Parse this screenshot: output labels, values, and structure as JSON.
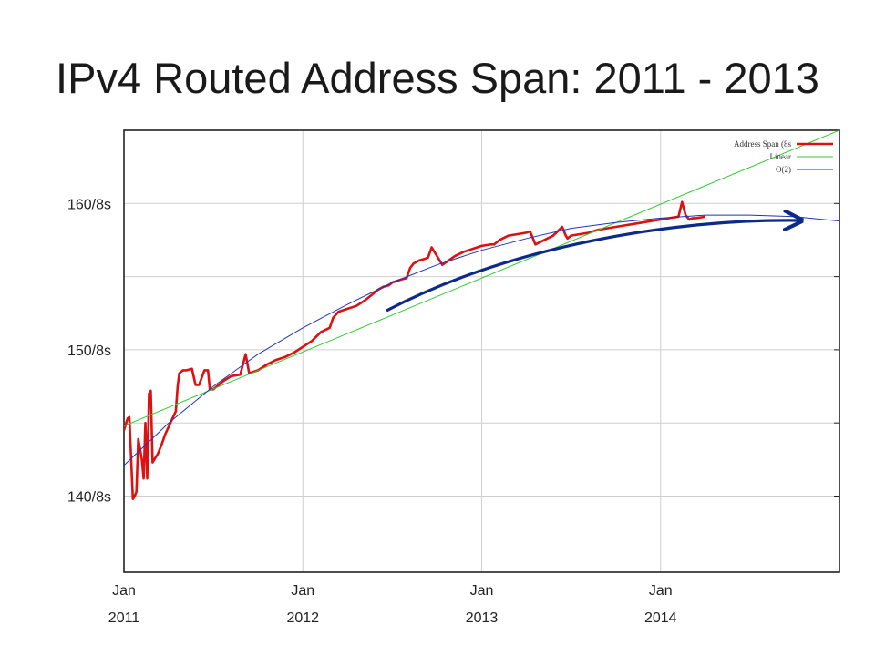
{
  "title": "IPv4 Routed Address Span: 2011 - 2013",
  "chart_data": {
    "type": "line",
    "title": "IPv4 Routed Address Span: 2011 - 2013",
    "xlabel": "",
    "ylabel": "",
    "x_unit": "year",
    "xlim": [
      2011.0,
      2015.0
    ],
    "ylim": [
      134.8,
      165.0
    ],
    "grid": true,
    "legend_position": "top-right",
    "y_ticks": [
      {
        "value": 140,
        "label": "140/8s"
      },
      {
        "value": 150,
        "label": "150/8s"
      },
      {
        "value": 160,
        "label": "160/8s"
      }
    ],
    "x_ticks": [
      {
        "value": 2011,
        "label1": "Jan",
        "label2": "2011"
      },
      {
        "value": 2012,
        "label1": "Jan",
        "label2": "2012"
      },
      {
        "value": 2013,
        "label1": "Jan",
        "label2": "2013"
      },
      {
        "value": 2014,
        "label1": "Jan",
        "label2": "2014"
      }
    ],
    "series": [
      {
        "name": "Address Span (8s",
        "color": "#dd1111",
        "x": [
          2011.0,
          2011.02,
          2011.03,
          2011.05,
          2011.06,
          2011.07,
          2011.08,
          2011.09,
          2011.1,
          2011.11,
          2011.12,
          2011.13,
          2011.14,
          2011.15,
          2011.16,
          2011.17,
          2011.18,
          2011.19,
          2011.21,
          2011.23,
          2011.26,
          2011.29,
          2011.3,
          2011.31,
          2011.33,
          2011.35,
          2011.38,
          2011.4,
          2011.42,
          2011.45,
          2011.47,
          2011.48,
          2011.5,
          2011.53,
          2011.56,
          2011.6,
          2011.65,
          2011.68,
          2011.7,
          2011.75,
          2011.8,
          2011.85,
          2011.9,
          2011.95,
          2012.0,
          2012.05,
          2012.1,
          2012.15,
          2012.17,
          2012.2,
          2012.25,
          2012.3,
          2012.35,
          2012.38,
          2012.42,
          2012.45,
          2012.48,
          2012.5,
          2012.55,
          2012.58,
          2012.6,
          2012.62,
          2012.65,
          2012.68,
          2012.7,
          2012.72,
          2012.78,
          2012.85,
          2012.9,
          2012.95,
          2013.0,
          2013.05,
          2013.07,
          2013.1,
          2013.15,
          2013.2,
          2013.25,
          2013.27,
          2013.3,
          2013.35,
          2013.4,
          2013.45,
          2013.47,
          2013.48,
          2013.5,
          2013.55,
          2013.6,
          2013.65,
          2013.7,
          2013.75,
          2013.8,
          2013.85,
          2013.9,
          2013.95,
          2014.0,
          2014.05,
          2014.1,
          2014.12,
          2014.14,
          2014.16,
          2014.18,
          2014.2,
          2014.25
        ],
        "values": [
          144.5,
          145.3,
          145.4,
          139.8,
          140.0,
          140.3,
          143.9,
          143.2,
          142.5,
          141.2,
          145.0,
          141.2,
          147.0,
          147.2,
          142.3,
          142.5,
          142.7,
          142.9,
          143.5,
          144.2,
          145.0,
          145.8,
          147.5,
          148.4,
          148.6,
          148.6,
          148.7,
          147.6,
          147.6,
          148.6,
          148.6,
          147.3,
          147.3,
          147.6,
          147.9,
          148.2,
          148.3,
          149.7,
          148.4,
          148.6,
          149.0,
          149.3,
          149.5,
          149.8,
          150.2,
          150.6,
          151.2,
          151.5,
          152.2,
          152.6,
          152.8,
          153.0,
          153.4,
          153.7,
          154.1,
          154.3,
          154.4,
          154.6,
          154.8,
          154.9,
          155.6,
          155.9,
          156.1,
          156.2,
          156.3,
          157.0,
          155.8,
          156.4,
          156.7,
          156.9,
          157.1,
          157.2,
          157.2,
          157.5,
          157.8,
          157.9,
          158.0,
          158.1,
          157.2,
          157.5,
          157.8,
          158.4,
          157.8,
          157.6,
          157.8,
          157.9,
          158.0,
          158.2,
          158.3,
          158.4,
          158.5,
          158.6,
          158.7,
          158.8,
          158.9,
          159.0,
          159.1,
          160.1,
          159.2,
          158.9,
          159.0,
          159.0,
          159.1
        ]
      },
      {
        "name": "Linear",
        "color": "#33cc33",
        "x": [
          2011.0,
          2015.0
        ],
        "values": [
          144.8,
          165.0
        ]
      },
      {
        "name": "O(2)",
        "color": "#2233bb",
        "x": [
          2011.0,
          2011.25,
          2011.5,
          2011.75,
          2012.0,
          2012.25,
          2012.5,
          2012.75,
          2013.0,
          2013.25,
          2013.5,
          2013.75,
          2014.0,
          2014.25,
          2014.5,
          2014.75,
          2015.0
        ],
        "values": [
          142.1,
          145.0,
          147.5,
          149.7,
          151.5,
          153.1,
          154.6,
          155.8,
          156.8,
          157.6,
          158.3,
          158.7,
          159.0,
          159.2,
          159.2,
          159.1,
          158.8
        ]
      }
    ]
  }
}
